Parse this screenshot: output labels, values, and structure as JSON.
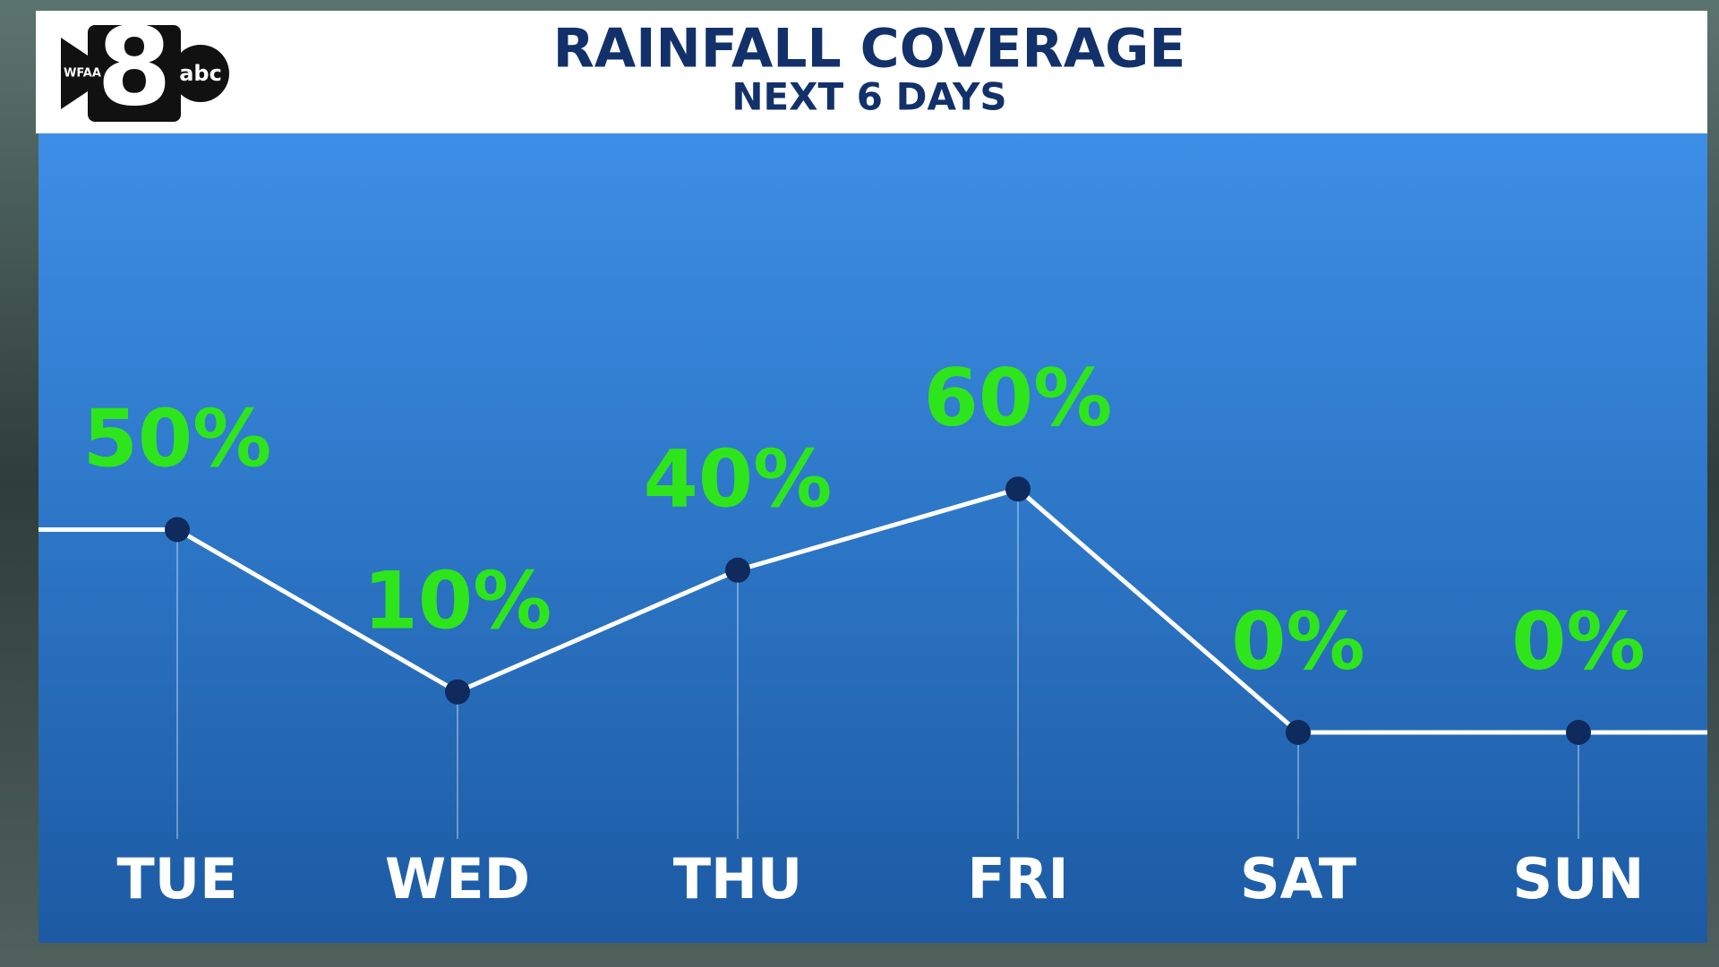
{
  "logo": {
    "channel": "8",
    "station": "WFAA",
    "network": "abc"
  },
  "chart_data": {
    "type": "line",
    "title": "RAINFALL COVERAGE",
    "subtitle": "NEXT 6 DAYS",
    "categories": [
      "TUE",
      "WED",
      "THU",
      "FRI",
      "SAT",
      "SUN"
    ],
    "values": [
      50,
      10,
      40,
      60,
      0,
      0
    ],
    "value_labels": [
      "50%",
      "10%",
      "40%",
      "60%",
      "0%",
      "0%"
    ],
    "color": "#ffffff",
    "marker_color": "#0f2a5c",
    "label_color": "#2ee51b"
  }
}
